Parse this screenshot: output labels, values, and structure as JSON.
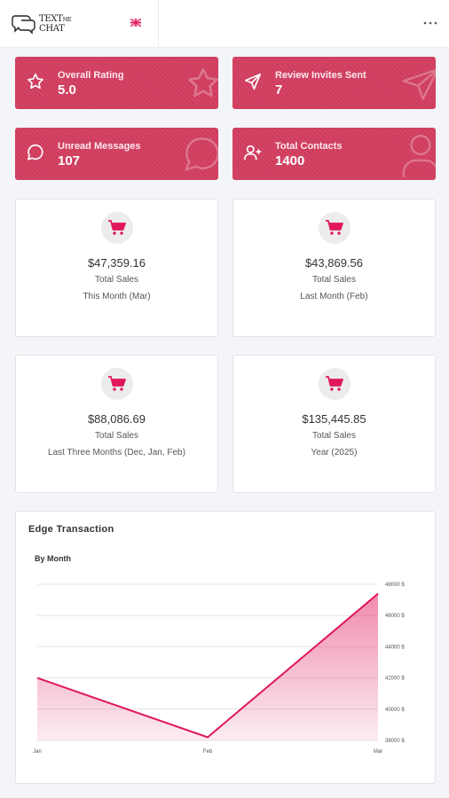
{
  "header": {
    "logo_text_top": "TEXT",
    "logo_text_small": "ME",
    "logo_text_bottom": "CHAT",
    "menu_icon": "more-horizontal-icon"
  },
  "stats": [
    {
      "label": "Overall Rating",
      "value": "5.0",
      "icon": "star-icon"
    },
    {
      "label": "Review Invites Sent",
      "value": "7",
      "icon": "send-icon"
    },
    {
      "label": "Unread Messages",
      "value": "107",
      "icon": "message-circle-icon"
    },
    {
      "label": "Total Contacts",
      "value": "1400",
      "icon": "user-plus-icon"
    }
  ],
  "sales_cards": [
    {
      "amount": "$47,359.16",
      "label": "Total Sales",
      "period": "This Month (Mar)"
    },
    {
      "amount": "$43,869.56",
      "label": "Total Sales",
      "period": "Last Month (Feb)"
    },
    {
      "amount": "$88,086.69",
      "label": "Total Sales",
      "period": "Last Three Months (Dec, Jan, Feb)"
    },
    {
      "amount": "$135,445.85",
      "label": "Total Sales",
      "period": "Year (2025)"
    }
  ],
  "colors": {
    "accent": "#d23e60",
    "line": "#e0185a"
  },
  "chart_data": {
    "type": "area",
    "title": "Edge Transaction",
    "subtitle": "By Month",
    "categories": [
      "Jan",
      "Feb",
      "Mar"
    ],
    "values": [
      42000,
      38200,
      47400
    ],
    "ylim": [
      38000,
      48000
    ],
    "yticks": [
      38000,
      40000,
      42000,
      44000,
      46000,
      48000
    ],
    "ytick_labels": [
      "38000 $",
      "40000 $",
      "42000 $",
      "44000 $",
      "46000 $",
      "48000 $"
    ],
    "grid": true
  }
}
